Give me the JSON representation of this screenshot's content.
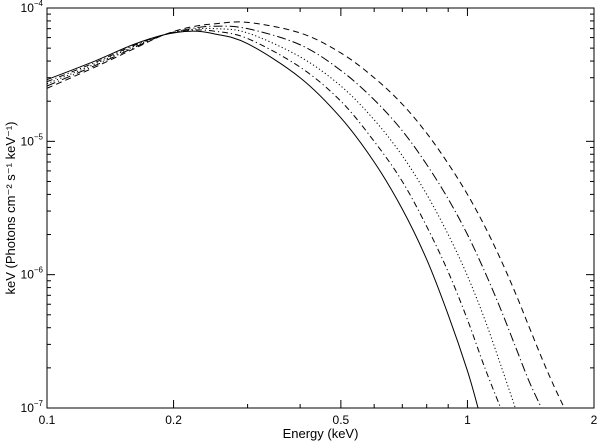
{
  "chart_data": {
    "type": "line",
    "title": "",
    "xlabel": "Energy (keV)",
    "ylabel": "keV (Photons cm⁻² s⁻¹ keV⁻¹)",
    "xscale": "log",
    "yscale": "log",
    "xlim": [
      0.1,
      2
    ],
    "ylim": [
      1e-07,
      0.0001
    ],
    "x_ticks": [
      {
        "value": 0.1,
        "label": "0.1"
      },
      {
        "value": 0.2,
        "label": "0.2"
      },
      {
        "value": 0.5,
        "label": "0.5"
      },
      {
        "value": 1,
        "label": "1"
      },
      {
        "value": 2,
        "label": "2"
      }
    ],
    "y_ticks": [
      {
        "value": 1e-07,
        "base": "10",
        "exp": "−7"
      },
      {
        "value": 1e-06,
        "base": "10",
        "exp": "−6"
      },
      {
        "value": 1e-05,
        "base": "10",
        "exp": "−5"
      },
      {
        "value": 0.0001,
        "base": "10",
        "exp": "−4"
      }
    ],
    "grid": false,
    "legend": "none",
    "line_color": "#000000",
    "series": [
      {
        "style": "solid",
        "x": [
          0.1,
          0.13,
          0.16,
          0.19,
          0.22,
          0.25,
          0.3,
          0.4,
          0.5,
          0.6,
          0.7,
          0.8,
          0.9,
          1.0,
          1.06
        ],
        "y": [
          2.9e-05,
          4e-05,
          5.3e-05,
          6.3e-05,
          6.7e-05,
          6.4e-05,
          5.4e-05,
          3e-05,
          1.5e-05,
          7e-06,
          3.1e-06,
          1.3e-06,
          5e-07,
          1.9e-07,
          1e-07
        ]
      },
      {
        "style": "dashdot",
        "x": [
          0.1,
          0.13,
          0.16,
          0.19,
          0.22,
          0.25,
          0.3,
          0.4,
          0.5,
          0.6,
          0.7,
          0.8,
          0.9,
          1.0,
          1.1,
          1.2
        ],
        "y": [
          2.8e-05,
          3.9e-05,
          5.2e-05,
          6.3e-05,
          6.8e-05,
          6.7e-05,
          5.9e-05,
          3.6e-05,
          2e-05,
          1e-05,
          5e-06,
          2.3e-06,
          1.05e-06,
          4.6e-07,
          2e-07,
          1e-07
        ]
      },
      {
        "style": "dotted",
        "x": [
          0.1,
          0.13,
          0.16,
          0.19,
          0.22,
          0.25,
          0.3,
          0.4,
          0.5,
          0.6,
          0.7,
          0.8,
          0.9,
          1.0,
          1.1,
          1.2,
          1.3
        ],
        "y": [
          2.7e-05,
          3.8e-05,
          5.1e-05,
          6.3e-05,
          6.9e-05,
          7e-05,
          6.5e-05,
          4.3e-05,
          2.6e-05,
          1.45e-05,
          7.8e-06,
          4e-06,
          2e-06,
          9.8e-07,
          4.6e-07,
          2.1e-07,
          1e-07
        ]
      },
      {
        "style": "longdashdot",
        "x": [
          0.1,
          0.13,
          0.16,
          0.19,
          0.22,
          0.25,
          0.3,
          0.4,
          0.5,
          0.6,
          0.7,
          0.8,
          0.9,
          1.0,
          1.1,
          1.2,
          1.3,
          1.4,
          1.5
        ],
        "y": [
          2.6e-05,
          3.7e-05,
          5e-05,
          6.3e-05,
          7e-05,
          7.3e-05,
          7e-05,
          5.3e-05,
          3.4e-05,
          2.05e-05,
          1.2e-05,
          6.7e-06,
          3.7e-06,
          2e-06,
          1.05e-06,
          5.5e-07,
          2.9e-07,
          1.6e-07,
          1e-07
        ]
      },
      {
        "style": "dashed",
        "x": [
          0.1,
          0.13,
          0.16,
          0.19,
          0.22,
          0.25,
          0.3,
          0.4,
          0.5,
          0.6,
          0.7,
          0.8,
          0.9,
          1.0,
          1.1,
          1.2,
          1.3,
          1.4,
          1.5,
          1.6,
          1.7
        ],
        "y": [
          2.5e-05,
          3.6e-05,
          4.9e-05,
          6.3e-05,
          7.2e-05,
          7.6e-05,
          7.8e-05,
          6.5e-05,
          4.6e-05,
          3e-05,
          1.9e-05,
          1.15e-05,
          6.8e-06,
          4e-06,
          2.3e-06,
          1.3e-06,
          7.3e-07,
          4.1e-07,
          2.4e-07,
          1.5e-07,
          1e-07
        ]
      }
    ]
  }
}
